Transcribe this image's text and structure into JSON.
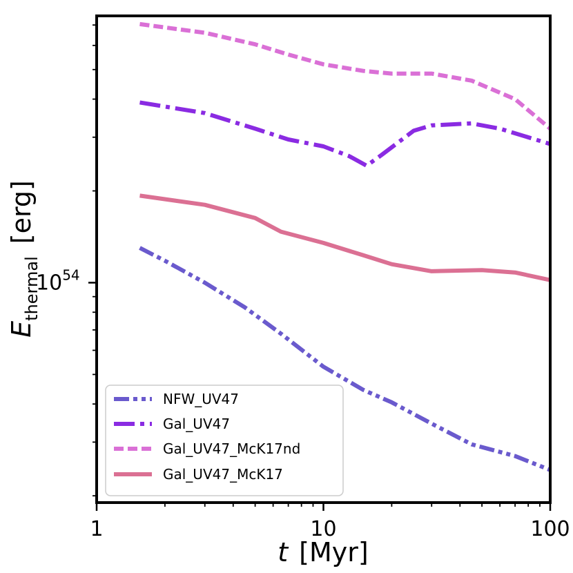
{
  "chart_data": {
    "type": "line",
    "xscale": "log",
    "yscale": "log",
    "xlim": [
      1,
      100
    ],
    "ylim": [
      1.9e+53,
      7.5e+54
    ],
    "xlabel_italic": "t",
    "xlabel_units": "[Myr]",
    "ylabel_italic": "E",
    "ylabel_sub": "thermal",
    "ylabel_units": "[erg]",
    "x_ticks": [
      {
        "value": 1,
        "label": "1"
      },
      {
        "value": 10,
        "label": "10"
      },
      {
        "value": 100,
        "label": "100"
      }
    ],
    "y_tick_label": {
      "value": 1e+54,
      "base": "10",
      "exp": "54"
    },
    "legend_position": "lower-left",
    "series": [
      {
        "name": "NFW_UV47",
        "color": "#6A5ACD",
        "style": "dashdotdot",
        "x": [
          1.55,
          2.0,
          3.0,
          4.5,
          6.5,
          10,
          15,
          20,
          30,
          45,
          70,
          100
        ],
        "y": [
          1.3e+54,
          1.18e+54,
          1e+54,
          8.3e+53,
          6.8e+53,
          5.3e+53,
          4.45e+53,
          4.05e+53,
          3.45e+53,
          2.95e+53,
          2.7e+53,
          2.43e+53
        ]
      },
      {
        "name": "Gal_UV47",
        "color": "#8A2BE2",
        "style": "dashdot",
        "x": [
          1.55,
          3.0,
          5.0,
          7.0,
          10,
          13,
          15.5,
          18,
          25,
          30,
          45,
          60,
          100
        ],
        "y": [
          3.9e+54,
          3.6e+54,
          3.2e+54,
          2.95e+54,
          2.8e+54,
          2.6e+54,
          2.42e+54,
          2.62e+54,
          3.15e+54,
          3.28e+54,
          3.33e+54,
          3.2e+54,
          2.85e+54
        ]
      },
      {
        "name": "Gal_UV47_McK17nd",
        "color": "#DA70D6",
        "style": "dashed",
        "x": [
          1.55,
          3.0,
          5.0,
          7.0,
          10,
          15,
          20,
          30,
          45,
          70,
          100
        ],
        "y": [
          7.05e+54,
          6.6e+54,
          6.05e+54,
          5.6e+54,
          5.2e+54,
          4.95e+54,
          4.85e+54,
          4.85e+54,
          4.6e+54,
          4e+54,
          3.2e+54
        ]
      },
      {
        "name": "Gal_UV47_McK17",
        "color": "#DB7093",
        "style": "solid",
        "x": [
          1.55,
          3.0,
          5.0,
          6.5,
          10,
          15,
          20,
          30,
          50,
          70,
          100
        ],
        "y": [
          1.93e+54,
          1.8e+54,
          1.63e+54,
          1.47e+54,
          1.35e+54,
          1.23e+54,
          1.15e+54,
          1.09e+54,
          1.1e+54,
          1.08e+54,
          1.02e+54
        ]
      }
    ]
  }
}
